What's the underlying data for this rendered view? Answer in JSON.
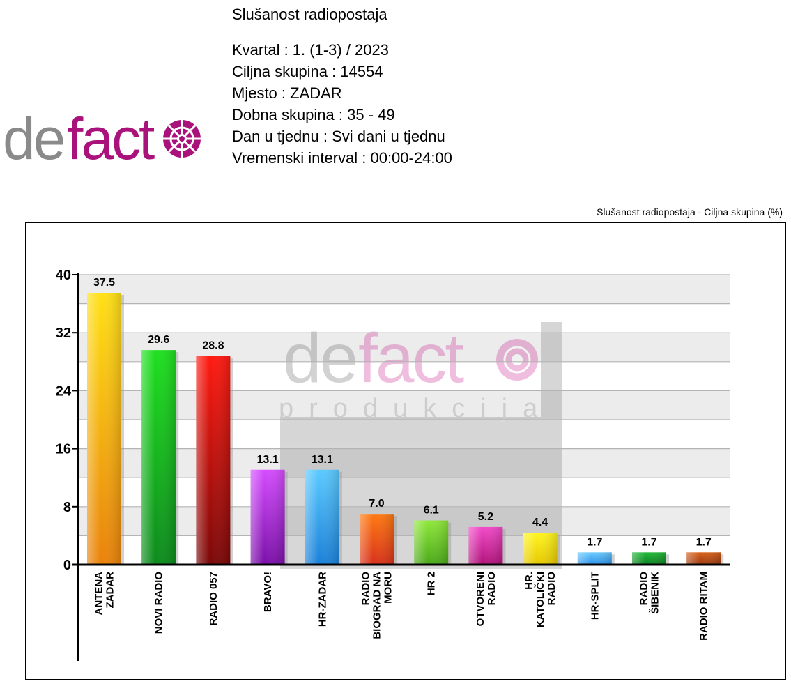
{
  "header": {
    "title": "Slušanost radiopostaja",
    "info_lines": [
      "Kvartal :  1. (1-3) / 2023",
      "Ciljna skupina :  14554",
      "Mjesto : ZADAR",
      "Dobna skupina : 35 - 49",
      "Dan u tjednu : Svi dani u tjednu",
      "Vremenski interval : 00:00-24:00"
    ]
  },
  "logo": {
    "brand_text": "defacto",
    "watermark_sub": "produkcija"
  },
  "chart_data": {
    "type": "bar",
    "title": "Slušanost radiopostaja - Ciljna skupina (%)",
    "ylim": [
      0,
      40
    ],
    "y_ticks": [
      "0",
      "8",
      "16",
      "24",
      "32",
      "40"
    ],
    "grid": true,
    "categories": [
      [
        "ANTENA",
        "ZADAR"
      ],
      [
        "NOVI RADIO"
      ],
      [
        "RADIO 057"
      ],
      [
        "BRAVO!"
      ],
      [
        "HR-ZADAR"
      ],
      [
        "RADIO",
        "BIOGRAD NA",
        "MORU"
      ],
      [
        "HR 2"
      ],
      [
        "OTVORENI",
        "RADIO"
      ],
      [
        "HR.",
        "KATOLIČKI",
        "RADIO"
      ],
      [
        "HR-SPLIT"
      ],
      [
        "RADIO",
        "ŠIBENIK"
      ],
      [
        "RADIO RITAM"
      ]
    ],
    "values": [
      37.5,
      29.6,
      28.8,
      13.1,
      13.1,
      7.0,
      6.1,
      5.2,
      4.4,
      1.7,
      1.7,
      1.7
    ],
    "value_labels": [
      "37.5",
      "29.6",
      "28.8",
      "13.1",
      "13.1",
      "7.0",
      "6.1",
      "5.2",
      "4.4",
      "1.7",
      "1.7",
      "1.7"
    ],
    "colors": [
      [
        "#ffe016",
        "#e9820a"
      ],
      [
        "#1ee01e",
        "#0c8a1c"
      ],
      [
        "#ff1a10",
        "#7a0808"
      ],
      [
        "#d54cff",
        "#7a10a8"
      ],
      [
        "#5ccaff",
        "#1a80d8"
      ],
      [
        "#ff7a10",
        "#d8301a"
      ],
      [
        "#8ee83a",
        "#4aa818"
      ],
      [
        "#f24ac8",
        "#b0127a"
      ],
      [
        "#fff520",
        "#e6c800"
      ],
      [
        "#6acaff",
        "#2a90e8"
      ],
      [
        "#22b83a",
        "#0c8020"
      ],
      [
        "#d8601a",
        "#9a3a10"
      ]
    ]
  }
}
